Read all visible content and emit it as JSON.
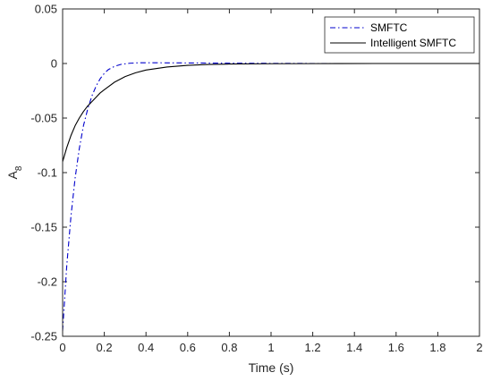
{
  "chart_data": {
    "type": "line",
    "title": "",
    "xlabel": "Time (s)",
    "ylabel_base": "A",
    "ylabel_sub": "8",
    "xlim": [
      0,
      2
    ],
    "ylim": [
      -0.25,
      0.05
    ],
    "xticks": [
      0,
      0.2,
      0.4,
      0.6,
      0.8,
      1,
      1.2,
      1.4,
      1.6,
      1.8,
      2
    ],
    "xtick_labels": [
      "0",
      "0.2",
      "0.4",
      "0.6",
      "0.8",
      "1",
      "1.2",
      "1.4",
      "1.6",
      "1.8",
      "2"
    ],
    "yticks": [
      -0.25,
      -0.2,
      -0.15,
      -0.1,
      -0.05,
      0,
      0.05
    ],
    "ytick_labels": [
      "-0.25",
      "-0.2",
      "-0.15",
      "-0.1",
      "-0.05",
      "0",
      "0.05"
    ],
    "grid": false,
    "legend_position": "top-right",
    "series": [
      {
        "name": "SMFTC",
        "color": "#0000cc",
        "dash": "dash-dot",
        "x": [
          0,
          0.02,
          0.04,
          0.06,
          0.08,
          0.1,
          0.12,
          0.14,
          0.16,
          0.18,
          0.2,
          0.22,
          0.25,
          0.28,
          0.32,
          0.36,
          0.4,
          0.5,
          0.6,
          0.8,
          1.0,
          1.2,
          1.5,
          1.9
        ],
        "y": [
          -0.245,
          -0.185,
          -0.14,
          -0.105,
          -0.078,
          -0.057,
          -0.042,
          -0.03,
          -0.021,
          -0.014,
          -0.009,
          -0.0055,
          -0.0025,
          -0.0008,
          0.0002,
          0.0006,
          0.0007,
          0.0006,
          0.0005,
          0.0003,
          0.0001,
          0.0,
          0.0,
          0.0
        ]
      },
      {
        "name": "Intelligent SMFTC",
        "color": "#000000",
        "dash": "solid",
        "x": [
          0,
          0.02,
          0.04,
          0.06,
          0.08,
          0.1,
          0.12,
          0.14,
          0.16,
          0.18,
          0.2,
          0.25,
          0.3,
          0.35,
          0.4,
          0.5,
          0.6,
          0.7,
          0.8,
          1.0,
          1.2,
          1.5,
          2.0
        ],
        "y": [
          -0.09,
          -0.077,
          -0.066,
          -0.057,
          -0.05,
          -0.044,
          -0.039,
          -0.035,
          -0.031,
          -0.027,
          -0.024,
          -0.017,
          -0.012,
          -0.0085,
          -0.006,
          -0.0032,
          -0.0017,
          -0.0009,
          -0.0005,
          -0.0002,
          -0.0001,
          0.0,
          0.0
        ]
      }
    ]
  }
}
